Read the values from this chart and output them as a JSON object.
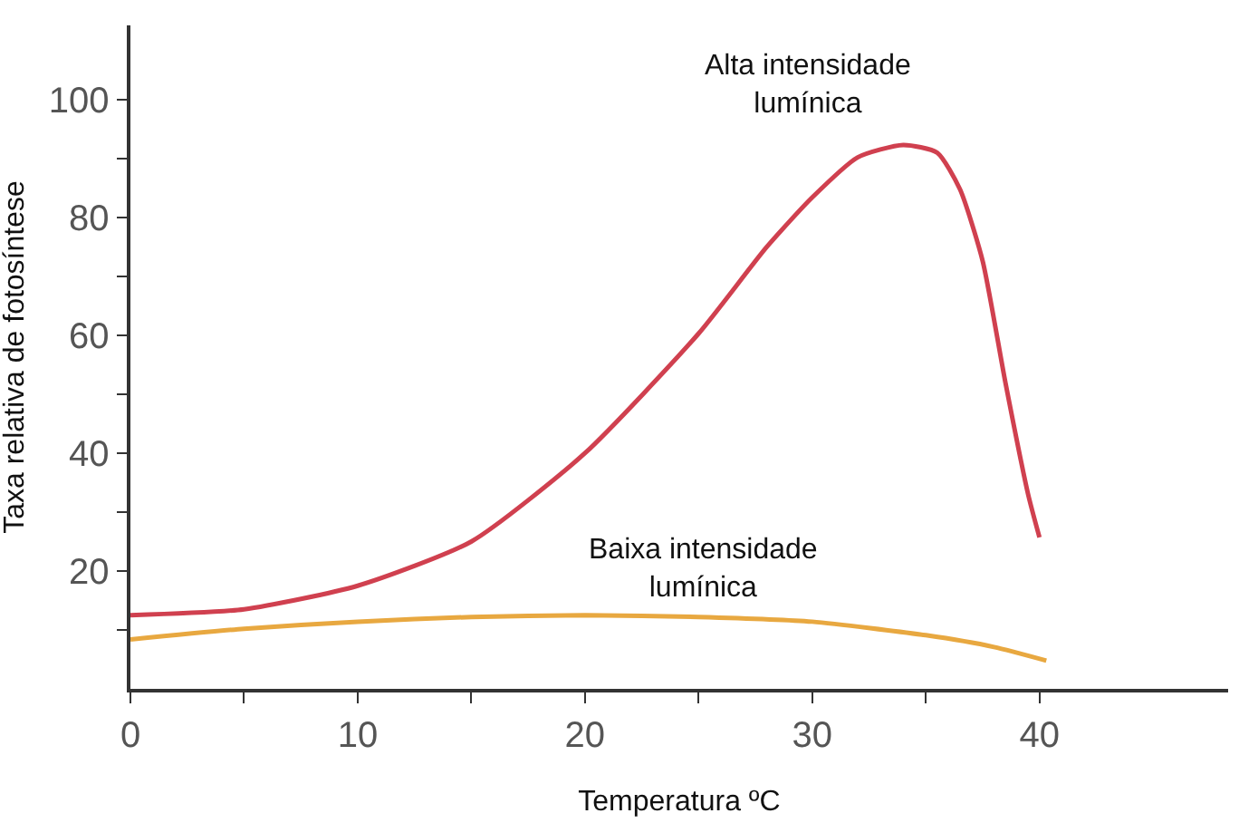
{
  "chart_data": {
    "type": "line",
    "xlabel": "Temperatura ºC",
    "ylabel": "Taxa relativa de fotosíntese",
    "xlim": [
      0,
      48.3
    ],
    "ylim": [
      0,
      112.6
    ],
    "xticks": [
      0,
      {
        "value": 5,
        "label": null
      },
      10,
      {
        "value": 15,
        "label": null
      },
      20,
      {
        "value": 25,
        "label": null
      },
      30,
      {
        "value": 35,
        "label": null
      },
      40
    ],
    "yticks": [
      {
        "value": 10,
        "label": null
      },
      20,
      {
        "value": 30,
        "label": null
      },
      40,
      {
        "value": 50,
        "label": null
      },
      60,
      {
        "value": 70,
        "label": null
      },
      80,
      {
        "value": 90,
        "label": null
      },
      100
    ],
    "marker": "none",
    "line_style": "solid",
    "series": [
      {
        "name": "Alta intensidade\nlumínica",
        "color": "#d0404f",
        "x": [
          0,
          5,
          10,
          15,
          20,
          25,
          28,
          30,
          32,
          34,
          35.5,
          36.5,
          37.5,
          38.5,
          39.5,
          40
        ],
        "values": [
          12.5,
          13.5,
          17.5,
          25,
          40,
          60.3,
          75,
          83.4,
          90.2,
          92.3,
          91,
          84.8,
          72.6,
          52,
          33,
          25.7
        ]
      },
      {
        "name": "Baixa intensidade\nlumínica",
        "color": "#e8a840",
        "x": [
          0,
          5,
          10,
          15,
          20,
          25,
          30,
          35,
          38,
          40.3
        ],
        "values": [
          8.4,
          10.2,
          11.4,
          12.2,
          12.5,
          12.2,
          11.4,
          9.1,
          7.1,
          4.8
        ]
      }
    ]
  }
}
